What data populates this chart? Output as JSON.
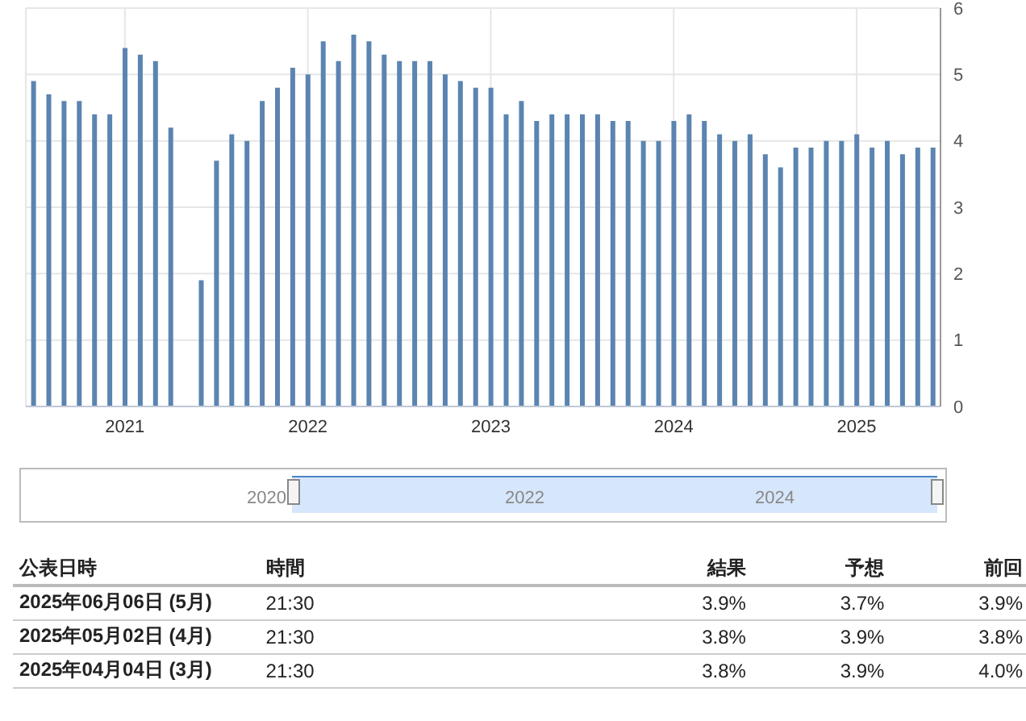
{
  "chart_data": {
    "type": "bar",
    "categories": [
      null,
      null,
      null,
      null,
      null,
      null,
      "2021",
      null,
      null,
      null,
      null,
      null,
      null,
      null,
      null,
      null,
      null,
      null,
      "2022",
      null,
      null,
      null,
      null,
      null,
      null,
      null,
      null,
      null,
      null,
      null,
      "2023",
      null,
      null,
      null,
      null,
      null,
      null,
      null,
      null,
      null,
      null,
      null,
      "2024",
      null,
      null,
      null,
      null,
      null,
      null,
      null,
      null,
      null,
      null,
      null,
      "2025",
      null,
      null,
      null,
      null,
      null
    ],
    "values": [
      4.9,
      4.7,
      4.6,
      4.6,
      4.4,
      4.4,
      5.4,
      5.3,
      5.2,
      4.2,
      null,
      1.9,
      3.7,
      4.1,
      4.0,
      4.6,
      4.8,
      5.1,
      5.0,
      5.5,
      5.2,
      5.6,
      5.5,
      5.3,
      5.2,
      5.2,
      5.2,
      5.0,
      4.9,
      4.8,
      4.8,
      4.4,
      4.6,
      4.3,
      4.4,
      4.4,
      4.4,
      4.4,
      4.3,
      4.3,
      4.0,
      4.0,
      4.3,
      4.4,
      4.3,
      4.1,
      4.0,
      4.1,
      3.8,
      3.6,
      3.9,
      3.9,
      4.0,
      4.0,
      4.1,
      3.9,
      4.0,
      3.8,
      3.9,
      3.9
    ],
    "color": "#5b84b1",
    "ylim": [
      0,
      6
    ],
    "yticks": [
      0,
      1,
      2,
      3,
      4,
      5,
      6
    ],
    "grid": true,
    "annotations": [
      "2020",
      "2022",
      "2024",
      "公表日時",
      "時間",
      "結果",
      "予想",
      "前回",
      "2025年06月06日 (5月)",
      "21:30",
      "3.9%",
      "3.7%",
      "3.9%",
      "2025年05月02日 (4月)",
      "21:30",
      "3.8%",
      "3.9%",
      "3.8%",
      "2025年04月04日 (3月)",
      "21:30",
      "3.8%",
      "3.9%",
      "4.0%"
    ]
  }
}
